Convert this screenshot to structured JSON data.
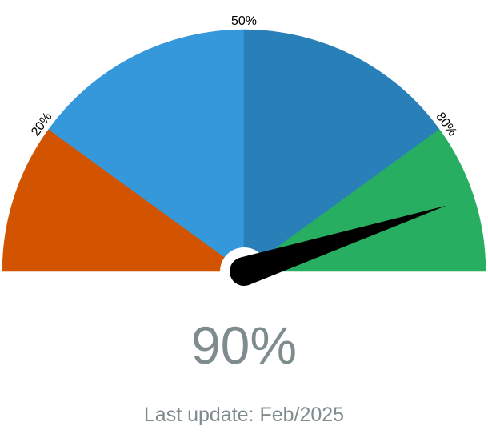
{
  "chart_data": {
    "type": "gauge",
    "min": 0,
    "max": 100,
    "value": 90,
    "value_label": "90%",
    "bands": [
      {
        "from": 0,
        "to": 20,
        "color": "#d35400"
      },
      {
        "from": 20,
        "to": 50,
        "color": "#3498db"
      },
      {
        "from": 50,
        "to": 80,
        "color": "#2980b9"
      },
      {
        "from": 80,
        "to": 100,
        "color": "#27ae60"
      }
    ],
    "ticks": [
      {
        "value": 20,
        "label": "20%"
      },
      {
        "value": 50,
        "label": "50%"
      },
      {
        "value": 80,
        "label": "80%"
      }
    ],
    "needle_color": "#000000",
    "value_text_color": "#7f8c8d",
    "footer": "Last update: Feb/2025"
  }
}
